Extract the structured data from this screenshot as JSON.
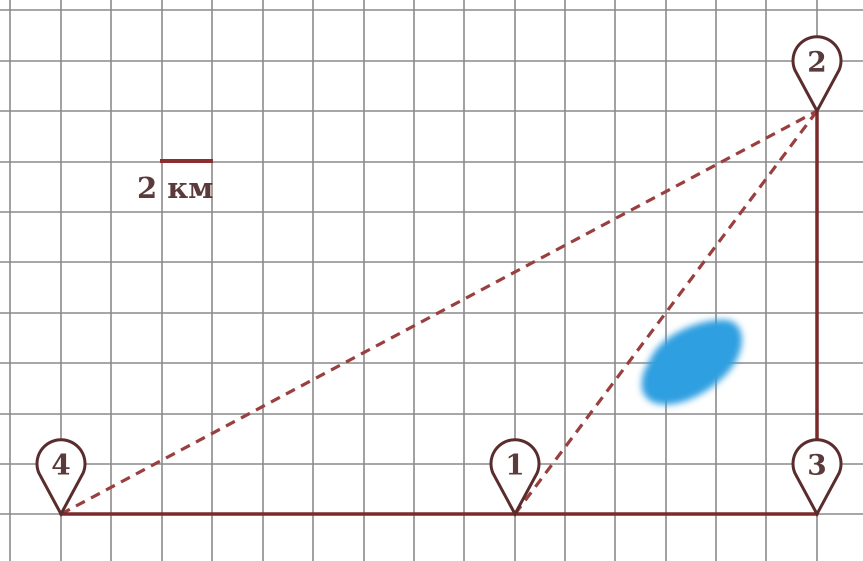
{
  "scale": {
    "label": "2 км"
  },
  "colors": {
    "grid": "#8a8a8a",
    "road": "#7a2a2a",
    "dashed_road": "#9a3f3f",
    "pin_outline": "#5a2c2c",
    "pin_text": "#5a3a3a",
    "lake": "#2f9fe0"
  },
  "points": [
    {
      "id": "p1",
      "label": "1"
    },
    {
      "id": "p2",
      "label": "2"
    },
    {
      "id": "p3",
      "label": "3"
    },
    {
      "id": "p4",
      "label": "4"
    }
  ],
  "roads": {
    "solid": [
      [
        "p4",
        "p1"
      ],
      [
        "p1",
        "p3"
      ],
      [
        "p3",
        "p2"
      ]
    ],
    "dashed": [
      [
        "p4",
        "p2"
      ],
      [
        "p1",
        "p2"
      ]
    ]
  },
  "lake": {
    "icon": "lake-blob"
  }
}
